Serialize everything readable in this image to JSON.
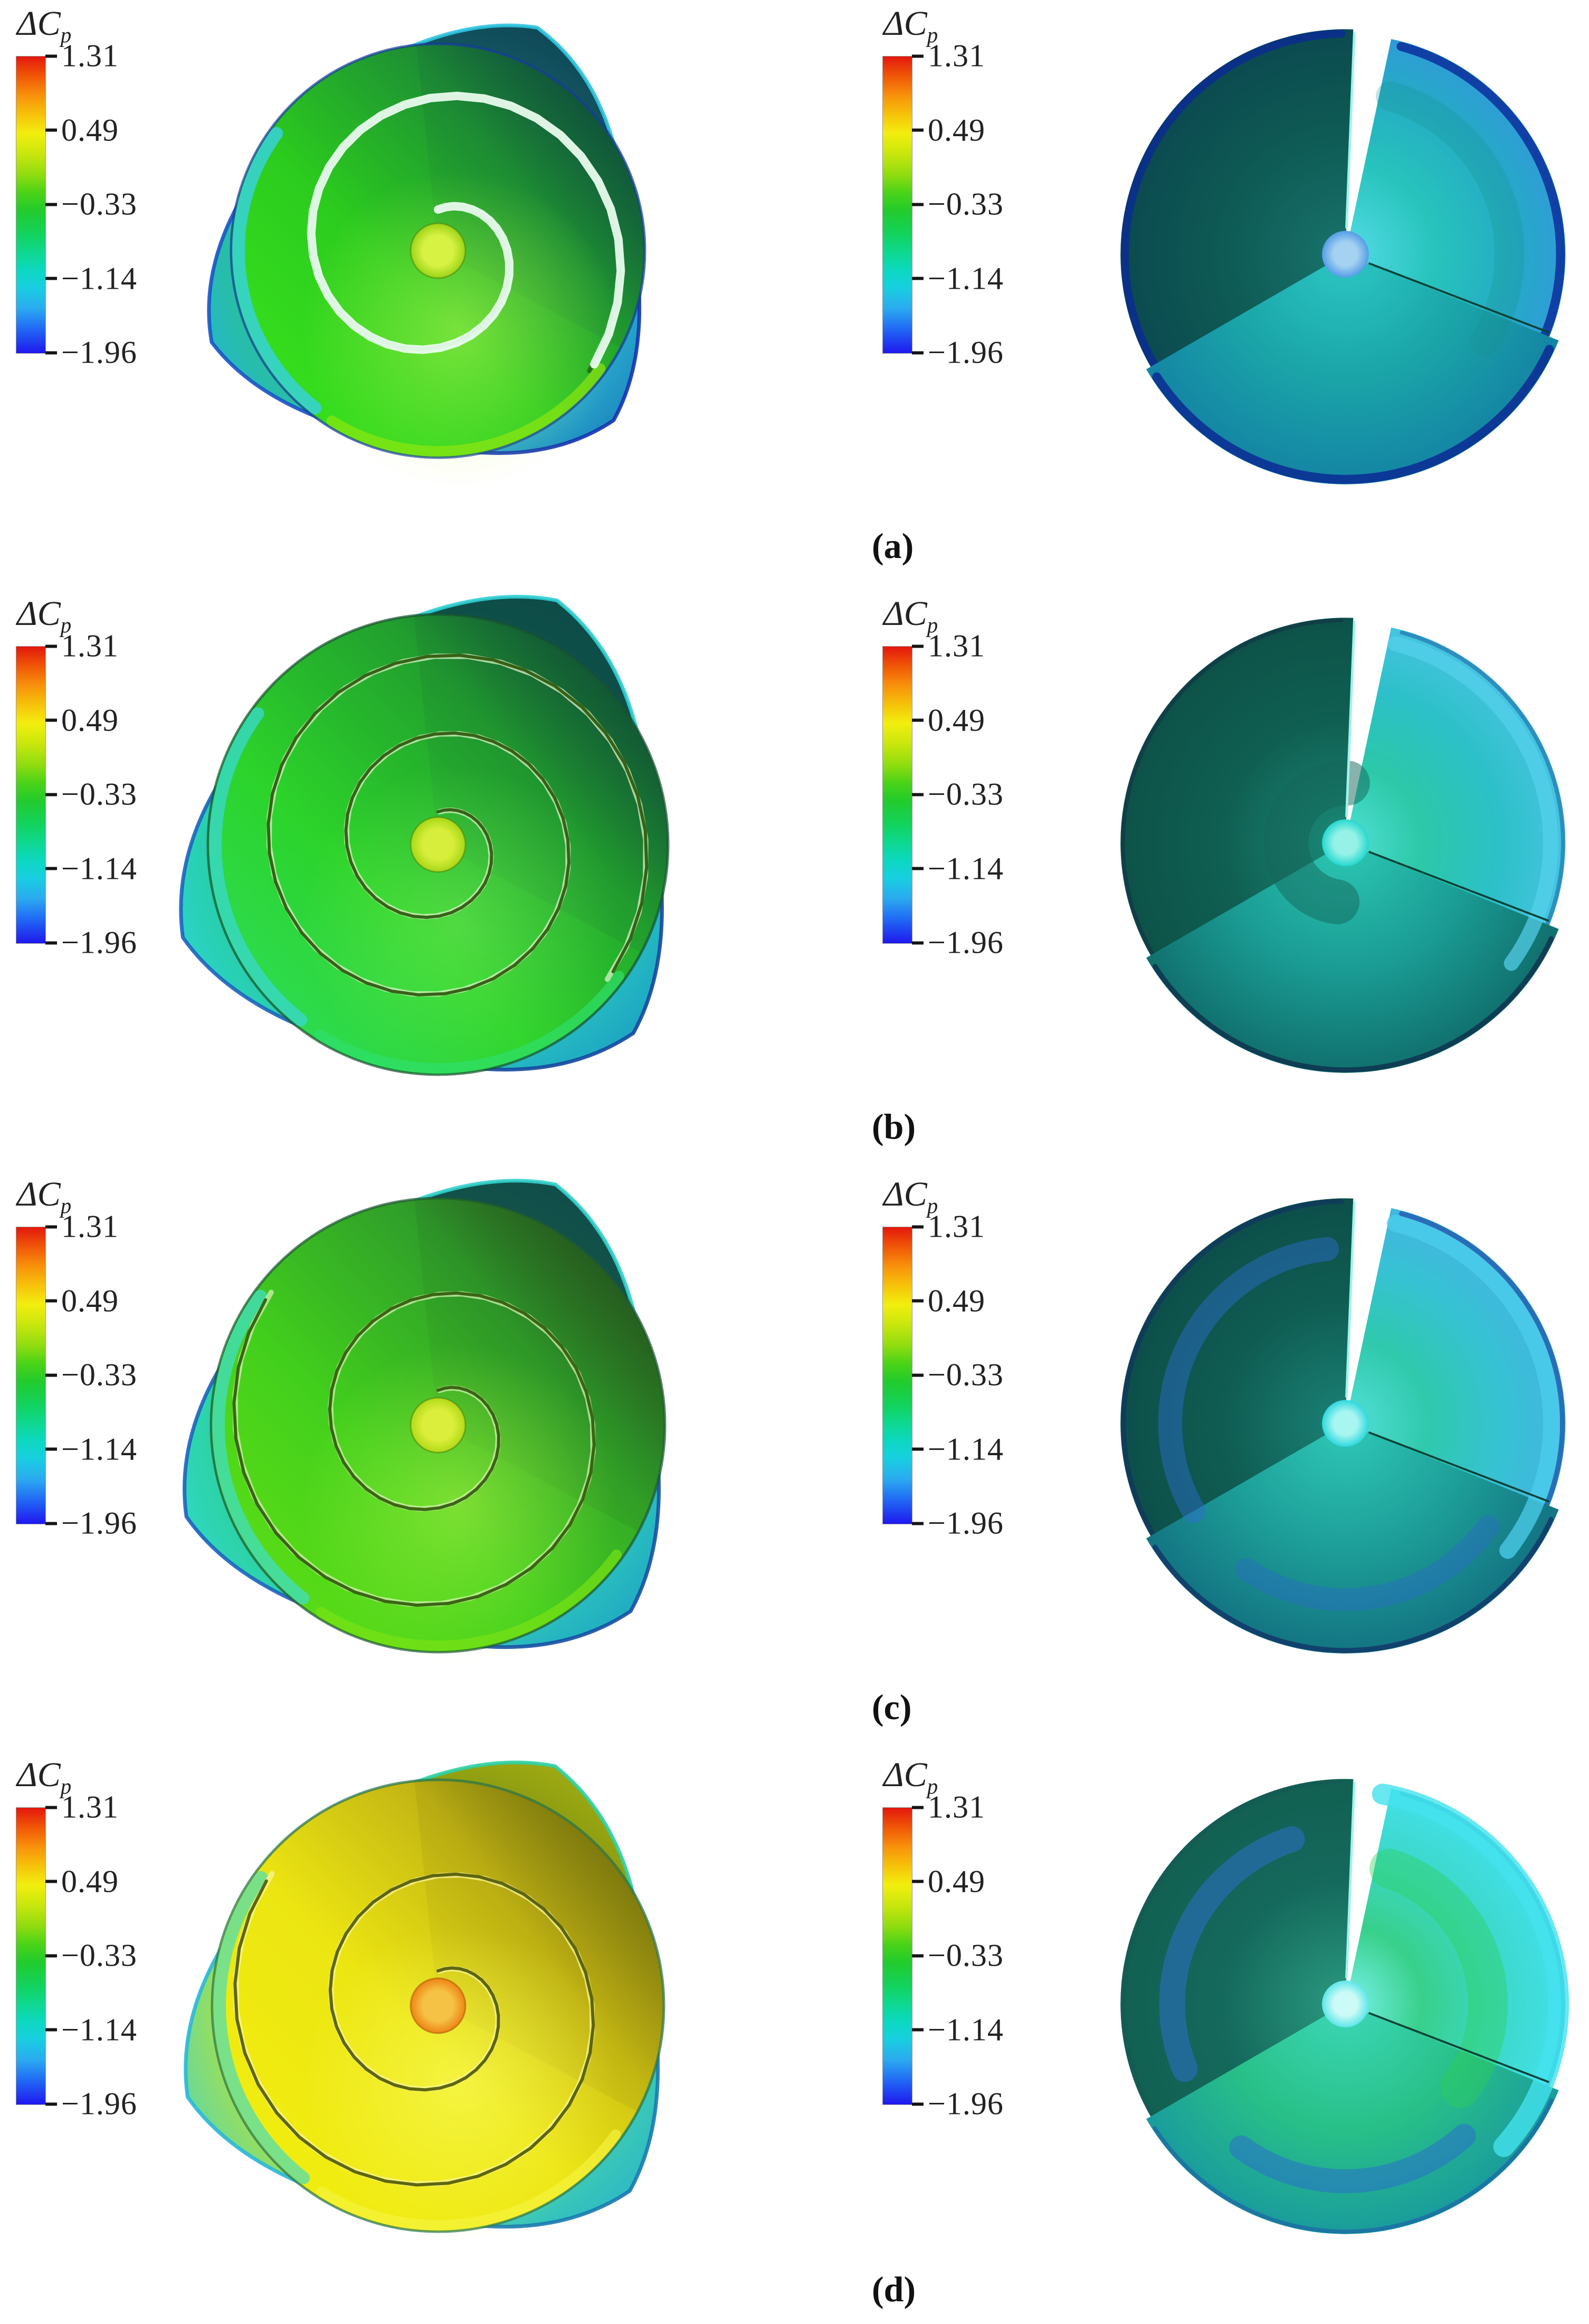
{
  "figure": {
    "kind": "pressure-contour multi-panel figure",
    "subfigures": [
      "(a)",
      "(b)",
      "(c)",
      "(d)"
    ]
  },
  "colorbar": {
    "label_main": "ΔC",
    "label_sub": "p",
    "ticks": [
      "1.31",
      "0.49",
      "−0.33",
      "−1.14",
      "−1.96"
    ],
    "range": {
      "max": 1.31,
      "min": -1.96
    },
    "gradient_stops": [
      "#e3170d",
      "#f8900b",
      "#f2ee0e",
      "#4ad317",
      "#12d35e",
      "#0cd8c0",
      "#2baaf0",
      "#1f18ee"
    ]
  },
  "rows": [
    {
      "id": "a",
      "caption": "(a)",
      "left": {
        "R": 392,
        "turns": 1.35,
        "r0": 78,
        "seamW": 16,
        "shadW": 8,
        "seamShadow": "#1e5c12",
        "seamLine": "#e9fcee",
        "disc": [
          [
            0,
            "#3ae81c"
          ],
          [
            0.42,
            "#2ccc1e"
          ],
          [
            0.68,
            "#1f9632"
          ],
          [
            1,
            "#0f4a42"
          ]
        ],
        "shade": "#0a3c3c",
        "leftBand": "#38d2e6",
        "bottomBand": "#93e80e",
        "rim": "#1638a0",
        "glow": {
          "c": "#d6ff5e",
          "op": 0.45
        },
        "fins": [
          {
            "tip": -66,
            "fill": [
              "#17606a",
              "#0e4654"
            ],
            "edge": "#2fc4e0"
          },
          {
            "tip": 158,
            "fill": [
              "#2cc47c",
              "#24b8c8"
            ],
            "edge": "#1a54c4"
          },
          {
            "tip": 44,
            "fill": [
              "#2cc4d4",
              "#1f86c0"
            ],
            "edge": "#1334b0"
          }
        ],
        "hub": [
          "#d8f244",
          "#9cd416"
        ],
        "hubEdge": "#4c8a12"
      },
      "right": {
        "sectors": [
          {
            "fill": [
              [
                0,
                "#18736c"
              ],
              [
                0.55,
                "#0e5a54"
              ],
              [
                1,
                "#0b4a50"
              ]
            ],
            "rim": "#0b2d90",
            "rimW": 16
          },
          {
            "fill": [
              [
                0,
                "#54dce8"
              ],
              [
                0.4,
                "#28c4bc"
              ],
              [
                0.75,
                "#24acc4"
              ],
              [
                1,
                "#2f9cd8"
              ]
            ],
            "rim": "#0c2f9c",
            "rimW": 18
          },
          {
            "fill": [
              [
                0,
                "#2cc8c4"
              ],
              [
                0.55,
                "#1aa4a8"
              ],
              [
                1,
                "#1484a4"
              ]
            ],
            "rim": "#0b2a94",
            "rimW": 18
          }
        ],
        "rings": [
          {
            "r": 330,
            "w": 60,
            "color": "#17908c",
            "op": 0.25,
            "a0": 286,
            "a1": 392
          }
        ],
        "hub": [
          "#a6d2f2",
          "#549ee6"
        ]
      }
    },
    {
      "id": "b",
      "caption": "(b)",
      "left": {
        "R": 436,
        "turns": 2.35,
        "r0": 62,
        "seamW": 6,
        "shadW": 10,
        "seamShadow": "#dcf2c8",
        "seamLine": "#2f5c10",
        "disc": [
          [
            0,
            "#2ee066"
          ],
          [
            0.38,
            "#2cd32a"
          ],
          [
            0.68,
            "#22a02e"
          ],
          [
            1,
            "#11443c"
          ]
        ],
        "shade": "#0b4034",
        "leftBand": "#38d8c8",
        "bottomBand": "#2fe06e",
        "rim": "#17502f",
        "glow": {
          "c": "#aaff7a",
          "op": 0.3
        },
        "fins": [
          {
            "tip": -64,
            "fill": [
              "#10554c",
              "#0d4a46"
            ],
            "edge": "#2fd0d4"
          },
          {
            "tip": 160,
            "fill": [
              "#22c88a",
              "#2cd4cc"
            ],
            "edge": "#1c64bc"
          },
          {
            "tip": 44,
            "fill": [
              "#2ccfc2",
              "#1ca2c2"
            ],
            "edge": "#14489e"
          }
        ],
        "hub": [
          "#d8ee3c",
          "#a6d816"
        ],
        "hubEdge": "#4c8a12"
      },
      "right": {
        "sectors": [
          {
            "fill": [
              [
                0,
                "#1b8a78"
              ],
              [
                0.55,
                "#0f5f52"
              ],
              [
                1,
                "#0d5248"
              ]
            ],
            "rim": "#123c48",
            "rimW": 8
          },
          {
            "fill": [
              [
                0,
                "#4fe0d4"
              ],
              [
                0.35,
                "#2cc8a8"
              ],
              [
                0.7,
                "#2cc0c8"
              ],
              [
                1,
                "#46c4e0"
              ]
            ],
            "rim": "#2a84b8",
            "rimW": 8
          },
          {
            "fill": [
              [
                0,
                "#2cc8b4"
              ],
              [
                0.55,
                "#1a9c94"
              ],
              [
                1,
                "#11706e"
              ]
            ],
            "rim": "#0e3450",
            "rimW": 10
          }
        ],
        "rings": [
          {
            "r": 412,
            "w": 30,
            "color": "#56d2ec",
            "op": 0.7,
            "a0": 284,
            "a1": 396
          },
          {
            "r": 120,
            "w": 90,
            "color": "#14655a",
            "op": 0.5,
            "a0": 98,
            "a1": 272
          }
        ],
        "hub": [
          "#96f2e6",
          "#26d8d0"
        ]
      }
    },
    {
      "id": "c",
      "caption": "(c)",
      "left": {
        "R": 430,
        "turns": 1.85,
        "r0": 66,
        "seamW": 6,
        "shadW": 10,
        "seamShadow": "#d4f0b0",
        "seamLine": "#345f0e",
        "disc": [
          [
            0,
            "#66e314"
          ],
          [
            0.4,
            "#42cf1c"
          ],
          [
            0.7,
            "#2f9e2a"
          ],
          [
            1,
            "#2c4c20"
          ]
        ],
        "shade": "#1e4418",
        "leftBand": "#42ddba",
        "bottomBand": "#7de414",
        "rim": "#1d5532",
        "glow": {
          "c": "#d8ff52",
          "op": 0.4
        },
        "fins": [
          {
            "tip": -64,
            "fill": [
              "#14584e",
              "#104c48"
            ],
            "edge": "#32d2cc"
          },
          {
            "tip": 160,
            "fill": [
              "#28cc84",
              "#30d8c4"
            ],
            "edge": "#1c64bc"
          },
          {
            "tip": 44,
            "fill": [
              "#30d2b8",
              "#20a8c4"
            ],
            "edge": "#1650a4"
          }
        ],
        "hub": [
          "#dcee3c",
          "#b2da18"
        ],
        "hubEdge": "#4c8a12"
      },
      "right": {
        "sectors": [
          {
            "fill": [
              [
                0,
                "#1a8276"
              ],
              [
                0.55,
                "#0f5c52"
              ],
              [
                1,
                "#0d4f4a"
              ]
            ],
            "rim": "#11395c",
            "rimW": 10
          },
          {
            "fill": [
              [
                0,
                "#54e0d8"
              ],
              [
                0.38,
                "#2fc9ac"
              ],
              [
                0.72,
                "#36c2d4"
              ],
              [
                1,
                "#44b4e0"
              ]
            ],
            "rim": "#2460b0",
            "rimW": 10
          },
          {
            "fill": [
              [
                0,
                "#2fc9b8"
              ],
              [
                0.55,
                "#1d9e98"
              ],
              [
                1,
                "#137482"
              ]
            ],
            "rim": "#12386a",
            "rimW": 10
          }
        ],
        "rings": [
          {
            "r": 352,
            "w": 48,
            "color": "#2e6fd2",
            "op": 0.45,
            "a0": 150,
            "a1": 264
          },
          {
            "r": 354,
            "w": 46,
            "color": "#2a6cc8",
            "op": 0.42,
            "a0": 36,
            "a1": 124
          },
          {
            "r": 414,
            "w": 34,
            "color": "#4ccfec",
            "op": 0.75,
            "a0": 284,
            "a1": 398
          }
        ],
        "hub": [
          "#a8f6f0",
          "#2fd8de"
        ]
      }
    },
    {
      "id": "d",
      "caption": "(d)",
      "left": {
        "R": 428,
        "turns": 1.85,
        "r0": 66,
        "seamW": 6,
        "shadW": 10,
        "seamShadow": "#f8f69a",
        "seamLine": "#565e0a",
        "disc": [
          [
            0,
            "#f4f00e"
          ],
          [
            0.45,
            "#ece512"
          ],
          [
            0.72,
            "#c2b414"
          ],
          [
            1,
            "#75800f"
          ]
        ],
        "shade": "#5c560a",
        "leftBand": "#5cdfa6",
        "bottomBand": "#f6f540",
        "rim": "#20704c",
        "glow": {
          "c": "#fbff66",
          "op": 0.55
        },
        "fins": [
          {
            "tip": -64,
            "fill": [
              "#7a9010",
              "#a2ac12"
            ],
            "edge": "#2ed0a4"
          },
          {
            "tip": 160,
            "fill": [
              "#cce418",
              "#62d8a4"
            ],
            "edge": "#28b8d8"
          },
          {
            "tip": 44,
            "fill": [
              "#4ad8a8",
              "#2cb8c6"
            ],
            "edge": "#1a7ab0"
          }
        ],
        "hub": [
          "#f6c246",
          "#ee8414"
        ],
        "hubEdge": "#b05c0a"
      },
      "right": {
        "sectors": [
          {
            "fill": [
              [
                0,
                "#2a9a80"
              ],
              [
                0.55,
                "#14695c"
              ],
              [
                1,
                "#126052"
              ]
            ],
            "rim": "#155c54",
            "rimW": 8
          },
          {
            "fill": [
              [
                0,
                "#7af2ee"
              ],
              [
                0.35,
                "#38d08a"
              ],
              [
                0.68,
                "#3cd8c8"
              ],
              [
                1,
                "#42e0ea"
              ]
            ],
            "rim": "#2aa8cc",
            "rimW": 8
          },
          {
            "fill": [
              [
                0,
                "#3cd8b8"
              ],
              [
                0.55,
                "#28c088"
              ],
              [
                1,
                "#1a9c9c"
              ]
            ],
            "rim": "#1c70a4",
            "rimW": 8
          }
        ],
        "rings": [
          {
            "r": 348,
            "w": 52,
            "color": "#2f6fd6",
            "op": 0.5,
            "a0": 158,
            "a1": 252
          },
          {
            "r": 356,
            "w": 48,
            "color": "#2b66d0",
            "op": 0.48,
            "a0": 48,
            "a1": 126
          },
          {
            "r": 286,
            "w": 80,
            "color": "#2ed056",
            "op": 0.4,
            "a0": 288,
            "a1": 396
          },
          {
            "r": 428,
            "w": 42,
            "color": "#44e2ee",
            "op": 0.8,
            "a0": 280,
            "a1": 402
          }
        ],
        "hub": [
          "#ccfaf6",
          "#5ee6ea"
        ]
      }
    }
  ]
}
